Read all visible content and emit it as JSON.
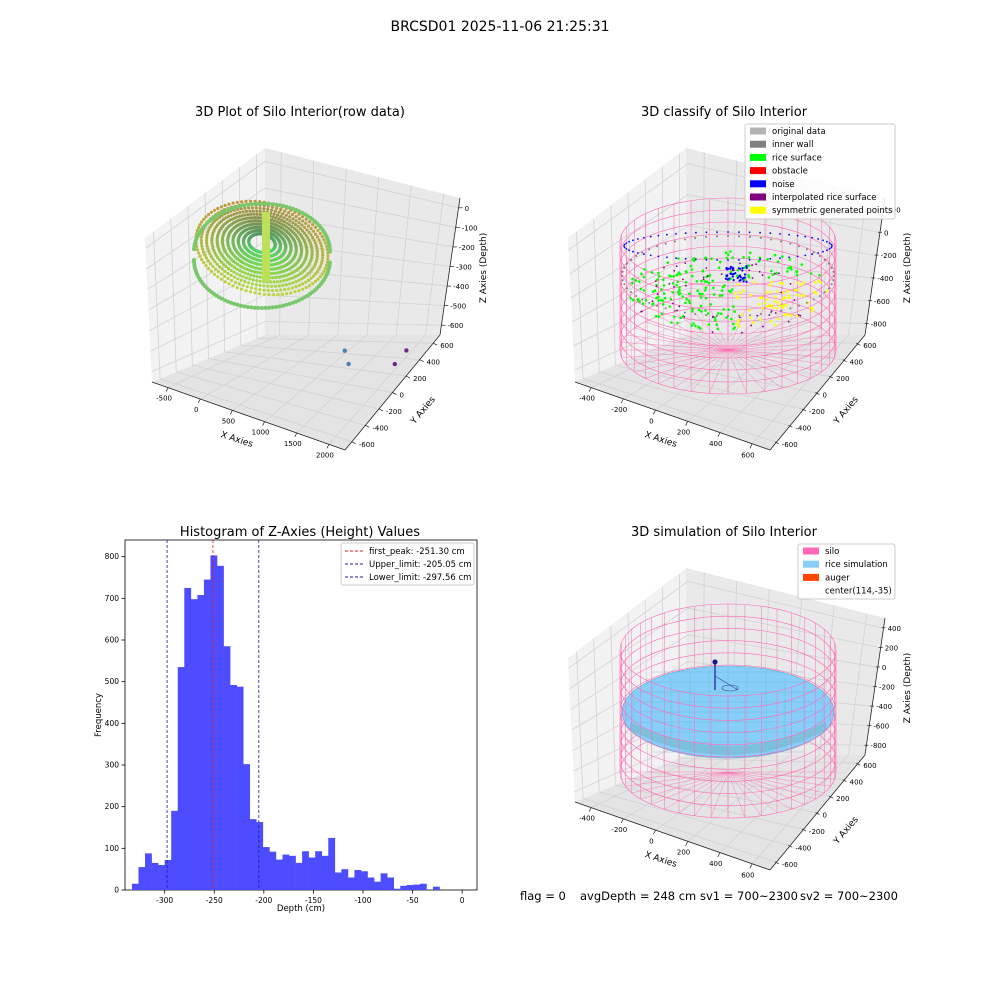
{
  "figure": {
    "suptitle": "BRCSD01 2025-11-06 21:25:31",
    "status_line": {
      "flag": "flag = 0",
      "avg_depth": "avgDepth = 248 cm",
      "sv1": "sv1 = 700~2300",
      "sv2": "sv2 = 700~2300"
    }
  },
  "colors": {
    "hist_bar": "#4d4dff",
    "first_peak": "#e41a1c",
    "limit_line": "#1a1aa6",
    "silo": "#ff69b4",
    "rice_simulation": "#87cefa",
    "auger": "#ff4500",
    "original_data": "#b3b3b3",
    "inner_wall": "#808080",
    "rice_surface": "#00ff00",
    "obstacle": "#ff0000",
    "noise": "#0000ff",
    "interpolated_rice_surface": "#800080",
    "symmetric_generated_points": "#ffff00"
  },
  "chart_data": [
    {
      "type": "scatter",
      "title": "3D Plot of Silo Interior(row data)",
      "xlabel": "X Axies",
      "ylabel": "Y Axies",
      "zlabel": "Z Axies (Depth)",
      "x_ticks": [
        "-500",
        "0",
        "500",
        "1000",
        "1500",
        "2000"
      ],
      "y_ticks": [
        "600",
        "400",
        "200",
        "0",
        "-200",
        "-400",
        "-600"
      ],
      "z_ticks": [
        "0",
        "-100",
        "-200",
        "-300",
        "-400",
        "-500",
        "-600"
      ],
      "outlier_points": [
        {
          "x": 1530,
          "y": -10,
          "z": -650
        },
        {
          "x": 1380,
          "y": -100,
          "z": -640
        },
        {
          "x": 2000,
          "y": -230,
          "z": -680
        },
        {
          "x": 1980,
          "y": -420,
          "z": -690
        }
      ]
    },
    {
      "type": "scatter",
      "title": "3D classify of Silo Interior",
      "xlabel": "X Axies",
      "ylabel": "Y Axies",
      "zlabel": "Z Axies (Depth)",
      "x_ticks": [
        "-400",
        "-200",
        "0",
        "200",
        "400",
        "600"
      ],
      "y_ticks": [
        "600",
        "400",
        "200",
        "0",
        "-200",
        "-400",
        "-600"
      ],
      "z_ticks": [
        "200",
        "0",
        "-200",
        "-400",
        "-600",
        "-800"
      ],
      "legend": [
        {
          "label": "original data",
          "color": "#b3b3b3"
        },
        {
          "label": "inner wall",
          "color": "#808080"
        },
        {
          "label": "rice surface",
          "color": "#00ff00"
        },
        {
          "label": "obstacle",
          "color": "#ff0000"
        },
        {
          "label": "noise",
          "color": "#0000ff"
        },
        {
          "label": "interpolated rice surface",
          "color": "#800080"
        },
        {
          "label": "symmetric generated points",
          "color": "#ffff00"
        }
      ]
    },
    {
      "type": "bar",
      "title": "Histogram of Z-Axies (Height) Values",
      "xlabel": "Depth (cm)",
      "ylabel": "Frequency",
      "xlim": [
        -340,
        15
      ],
      "ylim": [
        0,
        840
      ],
      "x_ticks": [
        "-300",
        "-250",
        "-200",
        "-150",
        "-100",
        "-50",
        "0"
      ],
      "y_ticks": [
        "0",
        "100",
        "200",
        "300",
        "400",
        "500",
        "600",
        "700",
        "800"
      ],
      "bin_start": -333,
      "bin_width": 6.6,
      "values": [
        15,
        55,
        88,
        65,
        60,
        72,
        190,
        535,
        725,
        698,
        708,
        745,
        803,
        778,
        585,
        492,
        488,
        302,
        170,
        163,
        103,
        92,
        73,
        85,
        82,
        65,
        93,
        78,
        93,
        82,
        125,
        42,
        50,
        30,
        48,
        45,
        30,
        20,
        40,
        30,
        3,
        10,
        12,
        13,
        15,
        0,
        8
      ],
      "vlines": [
        {
          "label": "first_peak: -251.30 cm",
          "x": -251.3,
          "color": "#e41a1c"
        },
        {
          "label": "Upper_limit: -205.05 cm",
          "x": -205.05,
          "color": "#1a1aa6"
        },
        {
          "label": "Lower_limit: -297.56 cm",
          "x": -297.56,
          "color": "#1a1aa6"
        }
      ]
    },
    {
      "type": "scatter",
      "title": "3D simulation of Silo Interior",
      "xlabel": "X Axies",
      "ylabel": "Y Axies",
      "zlabel": "Z Axies (Depth)",
      "x_ticks": [
        "-400",
        "-200",
        "0",
        "200",
        "400",
        "600"
      ],
      "y_ticks": [
        "600",
        "400",
        "200",
        "0",
        "-200",
        "-400",
        "-600"
      ],
      "z_ticks": [
        "400",
        "200",
        "0",
        "-200",
        "-400",
        "-600",
        "-800"
      ],
      "legend": [
        {
          "label": "silo",
          "color": "#ff69b4",
          "marker": "patch"
        },
        {
          "label": "rice simulation",
          "color": "#87cefa",
          "marker": "patch"
        },
        {
          "label": "auger",
          "color": "#ff4500",
          "marker": "patch"
        },
        {
          "label": "center(114,-35)",
          "color": "#ffffff",
          "marker": "none"
        }
      ]
    }
  ]
}
